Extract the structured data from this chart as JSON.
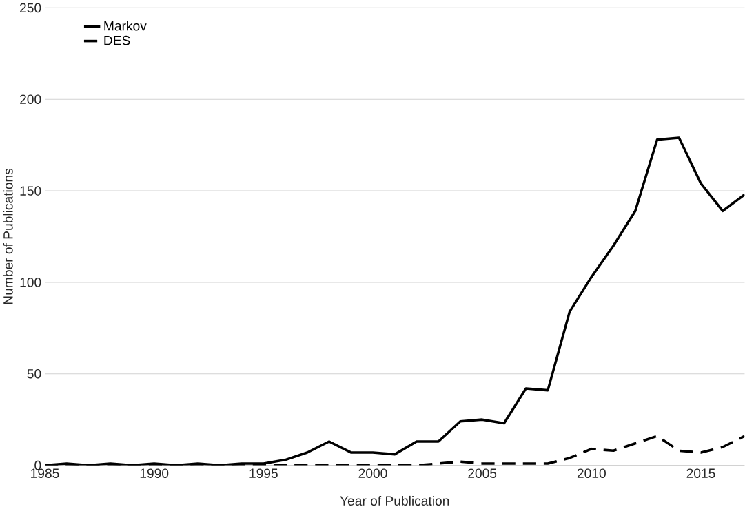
{
  "chart_data": {
    "type": "line",
    "xlabel": "Year of Publication",
    "ylabel": "Number of Publications",
    "x": [
      1985,
      1986,
      1987,
      1988,
      1989,
      1990,
      1991,
      1992,
      1993,
      1994,
      1995,
      1996,
      1997,
      1998,
      1999,
      2000,
      2001,
      2002,
      2003,
      2004,
      2005,
      2006,
      2007,
      2008,
      2009,
      2010,
      2011,
      2012,
      2013,
      2014,
      2015,
      2016,
      2017
    ],
    "series": [
      {
        "name": "Markov",
        "color": "#000000",
        "line_style": "solid",
        "values": [
          0,
          1,
          0,
          1,
          0,
          1,
          0,
          1,
          0,
          1,
          1,
          3,
          7,
          13,
          7,
          7,
          6,
          13,
          13,
          24,
          25,
          23,
          42,
          41,
          84,
          103,
          120,
          139,
          178,
          179,
          154,
          139,
          148
        ]
      },
      {
        "name": "DES",
        "color": "#000000",
        "line_style": "dashed",
        "values": [
          0,
          0,
          0,
          0,
          0,
          0,
          0,
          0,
          0,
          0,
          0,
          0,
          0,
          0,
          0,
          0,
          0,
          0,
          1,
          2,
          1,
          1,
          1,
          1,
          4,
          9,
          8,
          12,
          16,
          8,
          7,
          10,
          16
        ]
      }
    ],
    "xlim": [
      1985,
      2017
    ],
    "ylim": [
      0,
      250
    ],
    "xticks": [
      1985,
      1990,
      1995,
      2000,
      2005,
      2010,
      2015
    ],
    "yticks": [
      0,
      50,
      100,
      150,
      200,
      250
    ],
    "grid": "y",
    "legend": "top left",
    "marker": "none"
  }
}
